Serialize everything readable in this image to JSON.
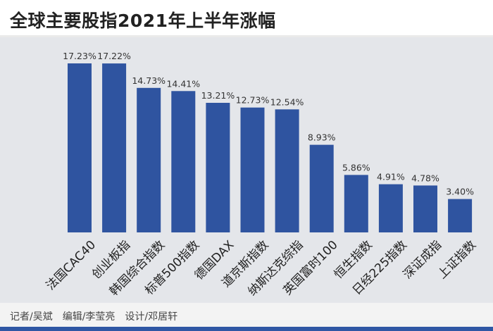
{
  "header": {
    "title": "全球主要股指2021年上半年涨幅"
  },
  "footer": {
    "credits": "记者/吴斌　编辑/李莹亮　设计/邓居轩"
  },
  "colors": {
    "bar": "#2f54a0",
    "background": "#e4e6ea",
    "accent_bar": "#2f57a4"
  },
  "chart_data": {
    "type": "bar",
    "title": "全球主要股指2021年上半年涨幅",
    "xlabel": "",
    "ylabel": "",
    "ylim": [
      0,
      17.23
    ],
    "categories": [
      "法国CAC40",
      "创业板指",
      "韩国综合指数",
      "标普500指数",
      "德国DAX",
      "道京斯指数",
      "纳斯达克综指",
      "英国富时100",
      "恒生指数",
      "日经225指数",
      "深证成指",
      "上证指数"
    ],
    "values": [
      17.23,
      17.22,
      14.73,
      14.41,
      13.21,
      12.73,
      12.54,
      8.93,
      5.86,
      4.91,
      4.78,
      3.4
    ],
    "value_labels": [
      "17.23%",
      "17.22%",
      "14.73%",
      "14.41%",
      "13.21%",
      "12.73%",
      "12.54%",
      "8.93%",
      "5.86%",
      "4.91%",
      "4.78%",
      "3.40%"
    ],
    "grid": false,
    "legend": "none"
  }
}
